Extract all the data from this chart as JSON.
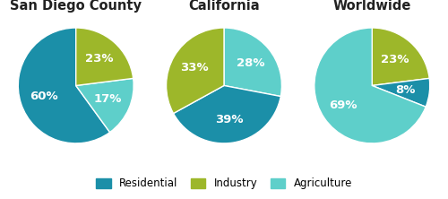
{
  "charts": [
    {
      "title": "San Diego County",
      "values": [
        60,
        17,
        23
      ],
      "labels": [
        "60%",
        "17%",
        "23%"
      ],
      "colors": [
        "#1b8fa8",
        "#5ecfca",
        "#9db72a"
      ],
      "startangle": 90,
      "counterclock": true,
      "label_r": [
        0.58,
        0.6,
        0.62
      ]
    },
    {
      "title": "California",
      "values": [
        28,
        39,
        33
      ],
      "labels": [
        "28%",
        "39%",
        "33%"
      ],
      "colors": [
        "#5ecfca",
        "#1b8fa8",
        "#9db72a"
      ],
      "startangle": 90,
      "counterclock": false,
      "label_r": [
        0.6,
        0.6,
        0.6
      ]
    },
    {
      "title": "Worldwide",
      "values": [
        23,
        8,
        69
      ],
      "labels": [
        "23%",
        "8%",
        "69%"
      ],
      "colors": [
        "#9db72a",
        "#1b8fa8",
        "#5ecfca"
      ],
      "startangle": 90,
      "counterclock": false,
      "label_r": [
        0.6,
        0.58,
        0.6
      ]
    }
  ],
  "legend_labels": [
    "Residential",
    "Industry",
    "Agriculture"
  ],
  "legend_colors": [
    "#1b8fa8",
    "#9db72a",
    "#5ecfca"
  ],
  "bg_color": "#ffffff",
  "text_color": "#ffffff",
  "title_color": "#222222",
  "title_fontsize": 10.5,
  "label_fontsize": 9.5
}
